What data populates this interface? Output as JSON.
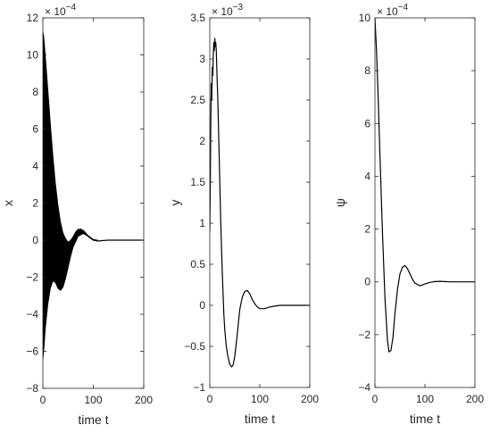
{
  "chart_data": [
    {
      "type": "line",
      "ylabel": "x",
      "xlabel": "time t",
      "exponent_label": "× 10^{-4}",
      "exponent_base": "× 10",
      "exponent_power": "−4",
      "xlim": [
        0,
        200
      ],
      "ylim": [
        -8,
        12
      ],
      "xticks": [
        0,
        100,
        200
      ],
      "yticks": [
        -8,
        -6,
        -4,
        -2,
        0,
        2,
        4,
        6,
        8,
        10,
        12
      ],
      "grid": false,
      "series": [
        {
          "color": "#000000",
          "band": {
            "x": [
              0,
              2,
              5,
              10,
              15,
              20,
              25,
              30,
              35,
              40,
              45,
              50,
              55,
              60,
              65,
              70,
              80,
              90,
              100,
              110
            ],
            "upper": [
              11.3,
              11.0,
              10.0,
              8.2,
              6.3,
              4.6,
              3.1,
              1.9,
              1.0,
              0.4,
              0.1,
              -0.1,
              0.0,
              0.2,
              0.45,
              0.6,
              0.55,
              0.25,
              0.05,
              0.0
            ],
            "lower": [
              -6.5,
              -6.0,
              -4.8,
              -3.5,
              -2.6,
              -2.2,
              -2.3,
              -2.6,
              -2.7,
              -2.55,
              -2.1,
              -1.5,
              -0.9,
              -0.4,
              -0.1,
              0.2,
              0.35,
              0.2,
              0.03,
              0.0
            ]
          },
          "x": [
            0,
            5,
            10,
            15,
            20,
            25,
            30,
            35,
            40,
            45,
            50,
            55,
            60,
            65,
            70,
            75,
            80,
            90,
            100,
            110,
            120,
            130,
            140,
            150,
            160,
            170,
            180,
            190,
            200
          ],
          "values": [
            0.0,
            2.0,
            1.8,
            0.3,
            -1.2,
            -2.2,
            -2.6,
            -2.7,
            -2.5,
            -2.0,
            -1.3,
            -0.6,
            -0.1,
            0.35,
            0.55,
            0.6,
            0.5,
            0.2,
            0.0,
            -0.05,
            -0.02,
            0,
            0,
            0,
            0,
            0,
            0,
            0,
            0
          ]
        }
      ]
    },
    {
      "type": "line",
      "ylabel": "y",
      "xlabel": "time t",
      "exponent_label": "× 10^{-3}",
      "exponent_base": "× 10",
      "exponent_power": "−3",
      "xlim": [
        0,
        200
      ],
      "ylim": [
        -1,
        3.5
      ],
      "xticks": [
        0,
        100,
        200
      ],
      "yticks": [
        -1,
        -0.5,
        0,
        0.5,
        1,
        1.5,
        2,
        2.5,
        3,
        3.5
      ],
      "grid": false,
      "series": [
        {
          "color": "#000000",
          "x": [
            0,
            1,
            2,
            3,
            4,
            5,
            6,
            7,
            8,
            9,
            10,
            11,
            12,
            13,
            14,
            15,
            16,
            18,
            20,
            22,
            25,
            28,
            30,
            33,
            36,
            40,
            44,
            47,
            50,
            55,
            60,
            65,
            70,
            75,
            80,
            85,
            90,
            95,
            100,
            110,
            120,
            130,
            140,
            150,
            160,
            170,
            180,
            190,
            200
          ],
          "values": [
            0.9,
            1.5,
            2.2,
            2.7,
            2.5,
            2.9,
            2.8,
            3.05,
            3.2,
            3.1,
            3.25,
            3.15,
            3.2,
            3.1,
            2.9,
            2.7,
            2.5,
            2.0,
            1.5,
            1.0,
            0.4,
            -0.1,
            -0.3,
            -0.5,
            -0.62,
            -0.72,
            -0.75,
            -0.72,
            -0.62,
            -0.35,
            -0.05,
            0.1,
            0.17,
            0.18,
            0.14,
            0.07,
            0.02,
            -0.02,
            -0.04,
            -0.04,
            -0.02,
            -0.01,
            0,
            0,
            0,
            0,
            0,
            0,
            0
          ]
        }
      ]
    },
    {
      "type": "line",
      "ylabel": "ψ",
      "xlabel": "time t",
      "exponent_label": "× 10^{-4}",
      "exponent_base": "× 10",
      "exponent_power": "−4",
      "xlim": [
        0,
        200
      ],
      "ylim": [
        -4,
        10
      ],
      "xticks": [
        0,
        100,
        200
      ],
      "yticks": [
        -4,
        -2,
        0,
        2,
        4,
        6,
        8,
        10
      ],
      "grid": false,
      "series": [
        {
          "color": "#000000",
          "x": [
            0,
            3,
            6,
            10,
            15,
            20,
            25,
            28,
            32,
            36,
            40,
            45,
            50,
            55,
            60,
            65,
            70,
            75,
            80,
            90,
            100,
            110,
            120,
            130,
            140,
            150,
            160,
            170,
            180,
            190,
            200
          ],
          "values": [
            10.0,
            8.8,
            7.2,
            4.8,
            1.9,
            -0.6,
            -2.2,
            -2.65,
            -2.6,
            -2.1,
            -1.2,
            -0.3,
            0.3,
            0.55,
            0.62,
            0.5,
            0.3,
            0.1,
            -0.05,
            -0.15,
            -0.08,
            -0.02,
            0.01,
            0.02,
            0.01,
            0,
            0,
            0,
            0,
            0,
            0
          ]
        }
      ]
    }
  ]
}
